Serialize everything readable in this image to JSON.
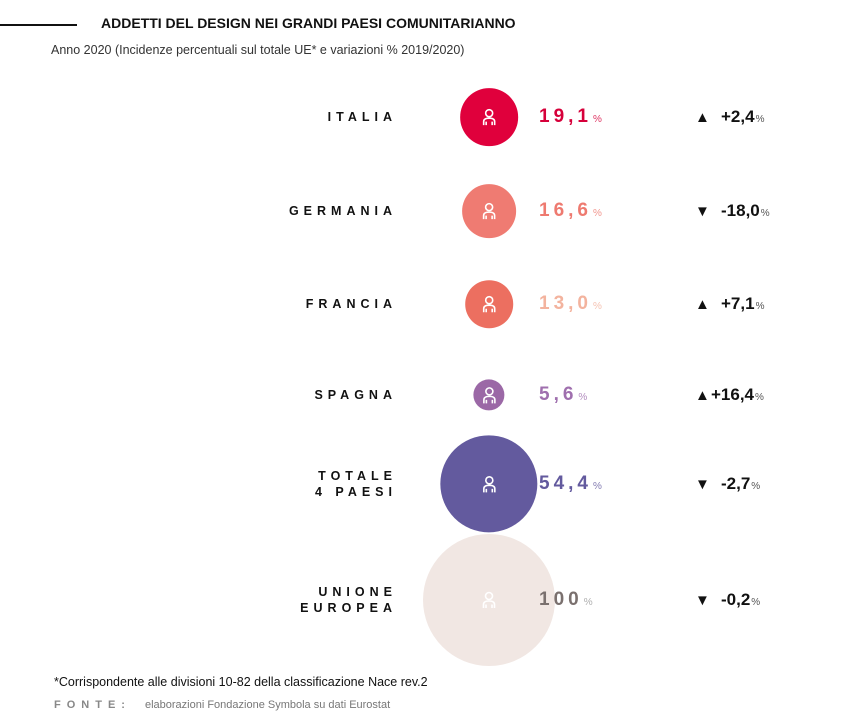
{
  "header": {
    "title": "ADDETTI DEL DESIGN NEI GRANDI PAESI COMUNITARIANNO",
    "subtitle": "Anno 2020 (Incidenze percentuali sul totale UE* e variazioni % 2019/2020)"
  },
  "chart_data": {
    "type": "bubble",
    "title": "ADDETTI DEL DESIGN NEI GRANDI PAESI COMUNITARIANNO",
    "subtitle": "Anno 2020 (Incidenze percentuali sul totale UE* e variazioni % 2019/2020)",
    "unit": "%",
    "rows": [
      {
        "label": "ITALIA",
        "share": 19.1,
        "share_text": "19,1",
        "change": 2.4,
        "change_text": "+2,4",
        "direction": "up",
        "circle_color": "#e0003c",
        "text_color": "#d6003a"
      },
      {
        "label": "GERMANIA",
        "share": 16.6,
        "share_text": "16,6",
        "change": -18.0,
        "change_text": "-18,0",
        "direction": "down",
        "circle_color": "#ef7b72",
        "text_color": "#ee7a70"
      },
      {
        "label": "FRANCIA",
        "share": 13.0,
        "share_text": "13,0",
        "change": 7.1,
        "change_text": "+7,1",
        "direction": "up",
        "circle_color": "#ec6f60",
        "text_color": "#f3b39e"
      },
      {
        "label": "SPAGNA",
        "share": 5.6,
        "share_text": "5,6",
        "change": 16.4,
        "change_text": "+16,4",
        "direction": "up",
        "circle_color": "#9b68a6",
        "text_color": "#9f6fae"
      },
      {
        "label": "TOTALE\n4 PAESI",
        "share": 54.4,
        "share_text": "54,4",
        "change": -2.7,
        "change_text": "-2,7",
        "direction": "down",
        "circle_color": "#635a9e",
        "text_color": "#635a9e"
      },
      {
        "label": "UNIONE\nEUROPEA",
        "share": 100,
        "share_text": "100",
        "change": -0.2,
        "change_text": "-0,2",
        "direction": "down",
        "circle_color": "#f1e7e3",
        "text_color": "#7a706e"
      }
    ]
  },
  "percent_sign": "%",
  "footer": {
    "note": "*Corrispondente alle divisioni 10-82 della classificazione Nace rev.2",
    "source_label": "FONTE:",
    "source": "elaborazioni Fondazione Symbola su dati Eurostat"
  }
}
